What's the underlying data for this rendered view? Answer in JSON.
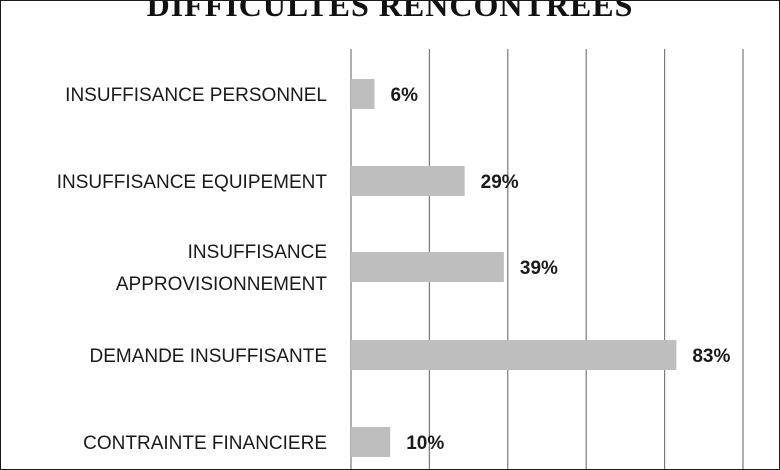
{
  "chart_data": {
    "type": "bar",
    "orientation": "horizontal",
    "title": "DIFFICULTÉS RENCONTRÉES",
    "categories": [
      "INSUFFISANCE PERSONNEL",
      "INSUFFISANCE EQUIPEMENT",
      "INSUFFISANCE APPROVISIONNEMENT",
      "DEMANDE INSUFFISANTE",
      "CONTRAINTE FINANCIERE"
    ],
    "category_lines": [
      [
        "INSUFFISANCE PERSONNEL"
      ],
      [
        "INSUFFISANCE EQUIPEMENT"
      ],
      [
        "INSUFFISANCE",
        "APPROVISIONNEMENT"
      ],
      [
        "DEMANDE INSUFFISANTE"
      ],
      [
        "CONTRAINTE FINANCIERE"
      ]
    ],
    "values": [
      6,
      29,
      39,
      83,
      10
    ],
    "data_labels": [
      "6%",
      "29%",
      "39%",
      "83%",
      "10%"
    ],
    "xlim": [
      0,
      100
    ],
    "xticks": [
      0,
      20,
      40,
      60,
      80,
      100
    ],
    "grid": true,
    "legend": false,
    "colors": {
      "bar": "#bebebe",
      "grid": "#7a7a7a",
      "text": "#1a1a1a"
    }
  }
}
